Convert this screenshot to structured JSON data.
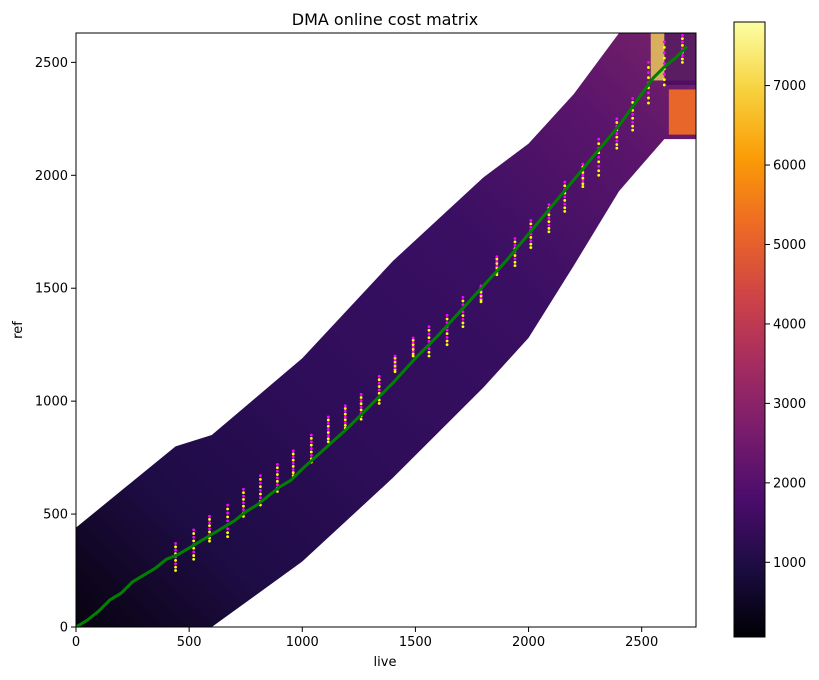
{
  "chart_data": {
    "type": "heatmap",
    "title": "DMA online cost matrix",
    "xlabel": "live",
    "ylabel": "ref",
    "xlim": [
      0,
      2740
    ],
    "ylim": [
      0,
      2630
    ],
    "x_ticks": [
      0,
      500,
      1000,
      1500,
      2000,
      2500
    ],
    "y_ticks": [
      0,
      500,
      1000,
      1500,
      2000,
      2500
    ],
    "colormap": "inferno",
    "colorbar": {
      "range": [
        60,
        7800
      ],
      "ticks": [
        1000,
        2000,
        3000,
        4000,
        5000,
        6000,
        7000
      ],
      "stops": [
        "#000004",
        "#1b0c41",
        "#4a0c6b",
        "#781c6d",
        "#a52c60",
        "#cf4446",
        "#ed6925",
        "#fb9b06",
        "#f7d13d",
        "#fcffa4"
      ]
    },
    "band": {
      "description_none": "",
      "upper_edge": [
        [
          0,
          440
        ],
        [
          440,
          800
        ],
        [
          600,
          850
        ],
        [
          1000,
          1190
        ],
        [
          1400,
          1620
        ],
        [
          1800,
          1990
        ],
        [
          2000,
          2140
        ],
        [
          2200,
          2360
        ],
        [
          2400,
          2630
        ],
        [
          2740,
          2630
        ]
      ],
      "lower_edge": [
        [
          0,
          0
        ],
        [
          600,
          0
        ],
        [
          1000,
          290
        ],
        [
          1400,
          660
        ],
        [
          1800,
          1060
        ],
        [
          2000,
          1280
        ],
        [
          2200,
          1600
        ],
        [
          2400,
          1930
        ],
        [
          2600,
          2160
        ],
        [
          2740,
          2160
        ]
      ]
    },
    "series": [
      {
        "name": "",
        "type": "line",
        "color": "#008000",
        "x": [
          0,
          50,
          100,
          150,
          200,
          250,
          300,
          350,
          400,
          450,
          500,
          550,
          600,
          650,
          700,
          750,
          800,
          850,
          900,
          950,
          1000,
          1100,
          1200,
          1300,
          1400,
          1500,
          1600,
          1700,
          1800,
          1900,
          2000,
          2100,
          2200,
          2300,
          2400,
          2500,
          2550,
          2600,
          2650,
          2700
        ],
        "y": [
          0,
          30,
          70,
          120,
          150,
          200,
          230,
          260,
          300,
          320,
          350,
          380,
          410,
          440,
          470,
          510,
          540,
          580,
          620,
          650,
          700,
          790,
          880,
          980,
          1080,
          1190,
          1290,
          1400,
          1510,
          1620,
          1740,
          1860,
          1980,
          2100,
          2220,
          2360,
          2430,
          2480,
          2520,
          2570
        ]
      }
    ],
    "scatter_columns": {
      "colors": [
        "#ff00ff",
        "#ffff00"
      ],
      "x": [
        440,
        520,
        590,
        670,
        740,
        815,
        890,
        960,
        1040,
        1115,
        1190,
        1260,
        1340,
        1410,
        1490,
        1560,
        1640,
        1710,
        1790,
        1860,
        1940,
        2010,
        2090,
        2160,
        2240,
        2310,
        2390,
        2460,
        2530,
        2600,
        2680
      ],
      "y_min": [
        250,
        300,
        380,
        400,
        490,
        540,
        600,
        670,
        730,
        820,
        880,
        920,
        990,
        1130,
        1200,
        1200,
        1250,
        1330,
        1440,
        1560,
        1600,
        1680,
        1750,
        1840,
        1950,
        2000,
        2120,
        2200,
        2320,
        2400,
        2500
      ],
      "y_max": [
        370,
        430,
        490,
        540,
        610,
        670,
        720,
        780,
        850,
        930,
        980,
        1030,
        1110,
        1200,
        1280,
        1330,
        1380,
        1460,
        1510,
        1640,
        1720,
        1800,
        1870,
        1970,
        2050,
        2160,
        2250,
        2340,
        2500,
        2590,
        2620
      ]
    }
  }
}
